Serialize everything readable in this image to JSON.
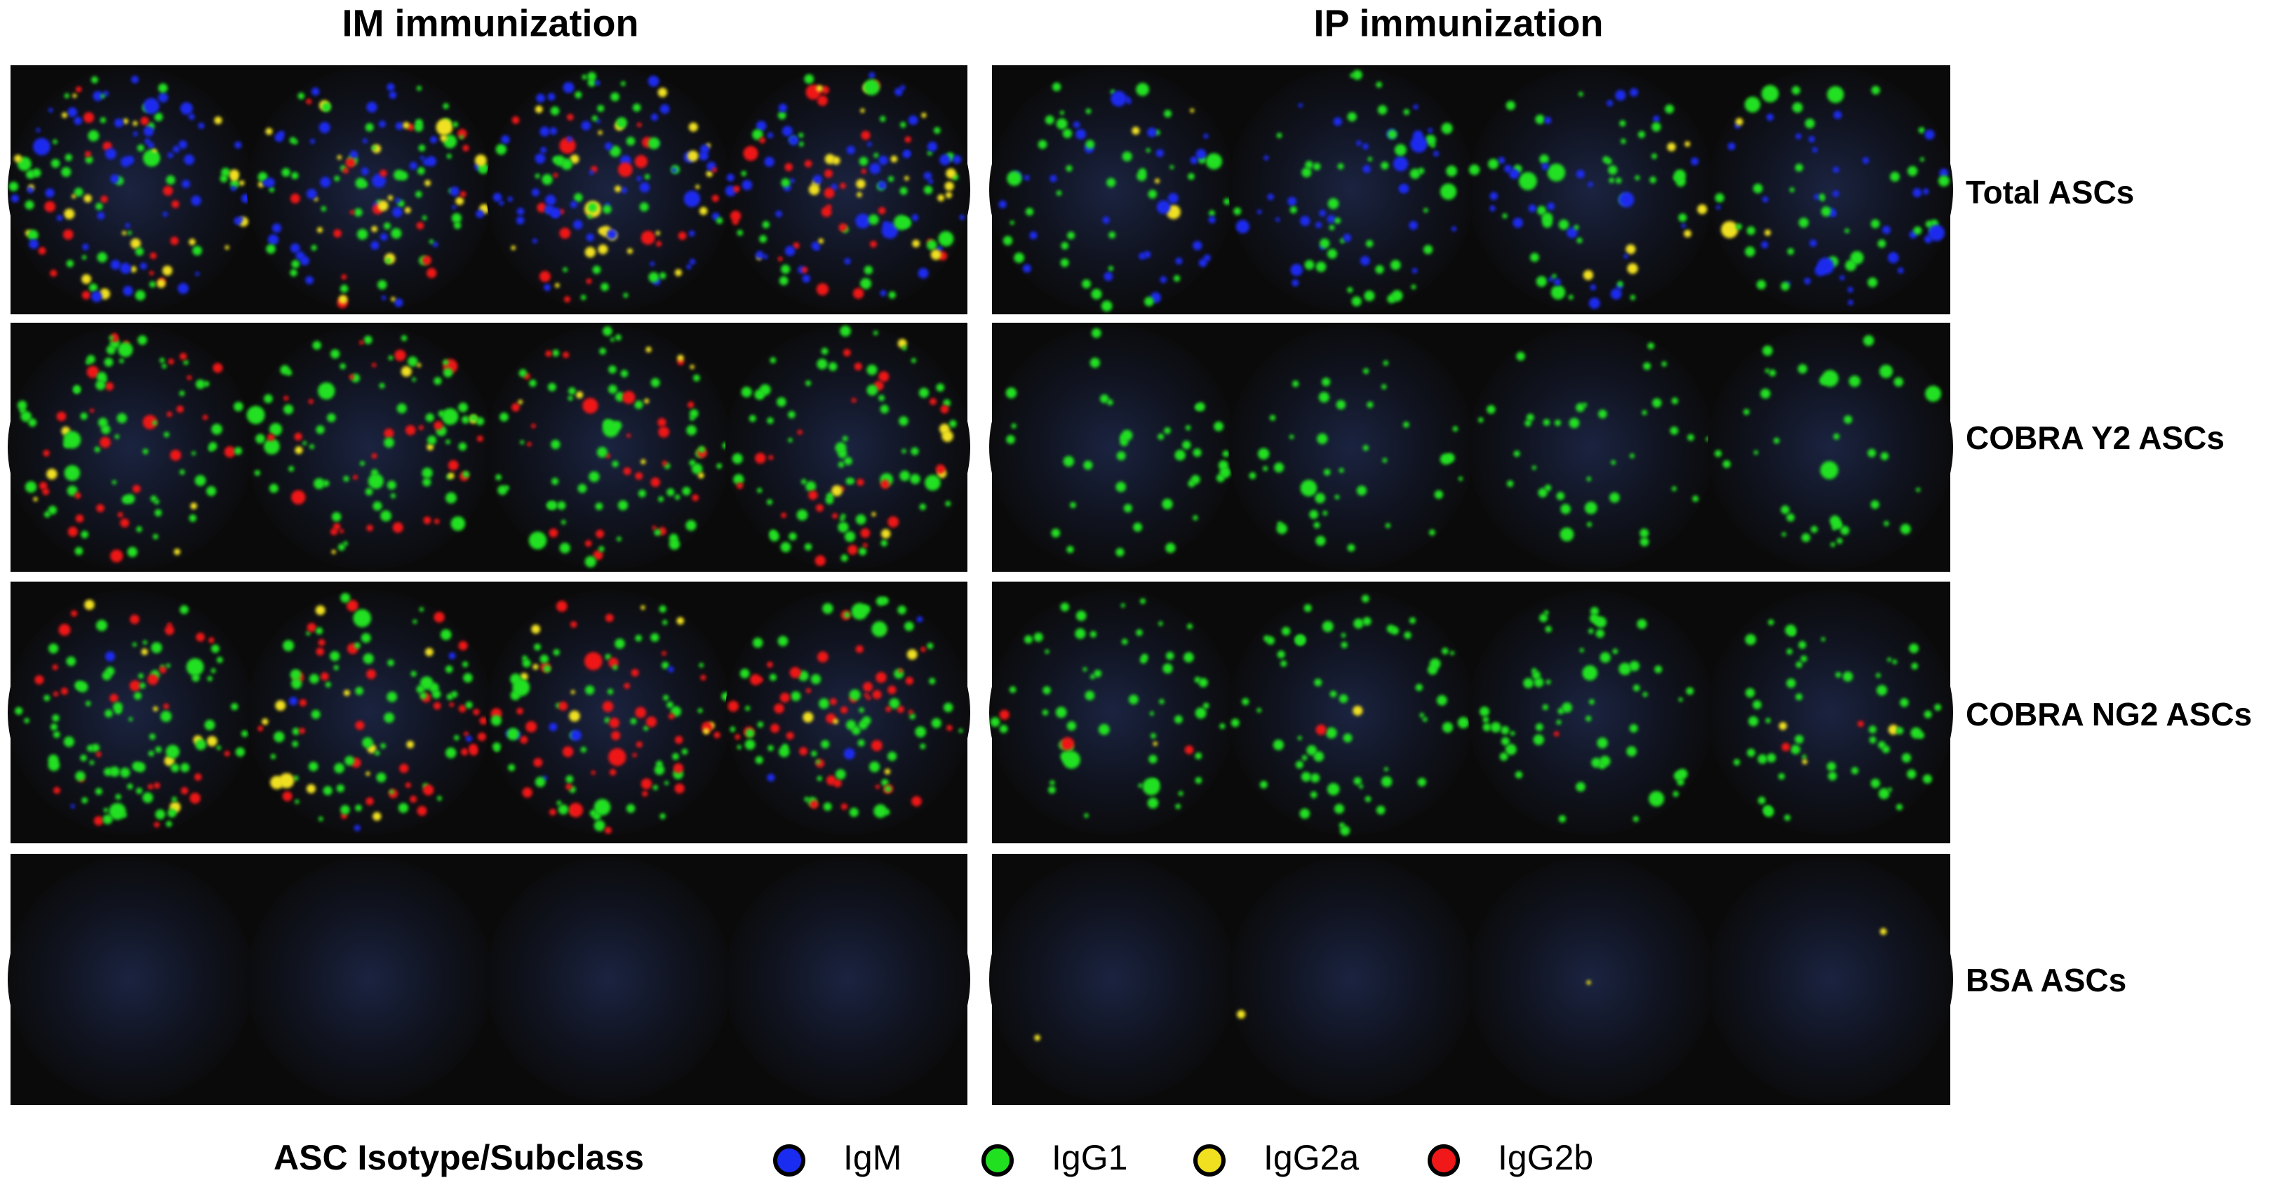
{
  "columns": [
    "IM immunization",
    "IP immunization"
  ],
  "rows": [
    "Total ASCs",
    "COBRA Y2 ASCs",
    "COBRA NG2 ASCs",
    "BSA ASCs"
  ],
  "legend": {
    "title": "ASC Isotype/Subclass",
    "items": [
      {
        "label": "IgM",
        "color": "#1a2cf0"
      },
      {
        "label": "IgG1",
        "color": "#20e020"
      },
      {
        "label": "IgG2a",
        "color": "#f0e020"
      },
      {
        "label": "IgG2b",
        "color": "#f01818"
      }
    ]
  }
}
